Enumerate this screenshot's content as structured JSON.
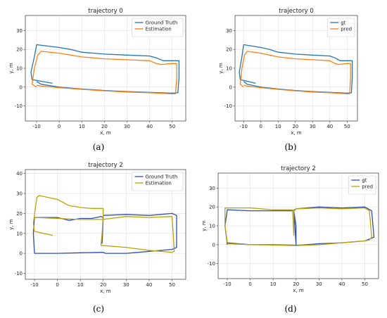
{
  "panel_labels": [
    "(a)",
    "(b)",
    "(c)",
    "(d)"
  ],
  "chart_data": [
    {
      "type": "line",
      "title": "trajectory 0",
      "xlabel": "x, m",
      "ylabel": "y, m",
      "xlim": [
        -15,
        56
      ],
      "ylim": [
        -18,
        38
      ],
      "xticks": [
        -10,
        0,
        10,
        20,
        30,
        40,
        50
      ],
      "yticks": [
        -10,
        0,
        10,
        20,
        30
      ],
      "grid": true,
      "legend": "top-right",
      "colors": {
        "Ground Truth": "#1f77b4",
        "Estimation": "#ff7f0e"
      },
      "series": [
        {
          "name": "Ground Truth",
          "x": [
            -3,
            -12,
            -12.5,
            -11,
            -10,
            0,
            5,
            10,
            20,
            30,
            40,
            43,
            46,
            52,
            53,
            53,
            52.5,
            50,
            40,
            30,
            20,
            10,
            0,
            -8,
            -10
          ],
          "y": [
            2,
            4,
            8,
            16,
            22.5,
            21,
            20,
            18.5,
            17.5,
            17,
            16.5,
            15.5,
            14,
            14,
            14,
            5,
            -3,
            -3.2,
            -2.8,
            -2.4,
            -1.8,
            -1,
            0,
            1.5,
            3
          ]
        },
        {
          "name": "Estimation",
          "x": [
            -10,
            -12,
            -11,
            -9.5,
            -8,
            0,
            10,
            20,
            30,
            40,
            43,
            45,
            50,
            52,
            52,
            51.5,
            50,
            40,
            30,
            20,
            10,
            0,
            -8,
            -10
          ],
          "y": [
            0,
            1.5,
            10,
            17,
            19,
            18,
            16,
            15,
            14.5,
            14,
            12.5,
            12,
            12.5,
            12.5,
            5,
            -3.5,
            -3.6,
            -3,
            -2.6,
            -2,
            -1.2,
            -0.3,
            0.5,
            1
          ]
        }
      ]
    },
    {
      "type": "line",
      "title": "trajectory 0",
      "xlabel": "x, m",
      "ylabel": "y, m",
      "xlim": [
        -15,
        56
      ],
      "ylim": [
        -18,
        38
      ],
      "xticks": [
        -10,
        0,
        10,
        20,
        30,
        40,
        50
      ],
      "yticks": [
        -10,
        0,
        10,
        20,
        30
      ],
      "grid": true,
      "legend": "top-right",
      "colors": {
        "gt": "#1f77b4",
        "pred": "#ff7f0e"
      },
      "series": [
        {
          "name": "gt",
          "x": [
            -3,
            -12,
            -12.5,
            -11,
            -10,
            0,
            5,
            10,
            20,
            30,
            40,
            43,
            46,
            52,
            53,
            53,
            52.5,
            50,
            40,
            30,
            20,
            10,
            0,
            -8,
            -10
          ],
          "y": [
            2,
            4,
            8,
            16,
            22.5,
            21,
            20,
            18.5,
            17.5,
            17,
            16.5,
            15.5,
            14,
            14,
            14,
            5,
            -3,
            -3.2,
            -2.8,
            -2.4,
            -1.8,
            -1,
            0,
            1.5,
            3
          ]
        },
        {
          "name": "pred",
          "x": [
            -10,
            -12,
            -11,
            -9.5,
            -8,
            0,
            10,
            20,
            30,
            40,
            43,
            45,
            50,
            52,
            52,
            51.5,
            50,
            40,
            30,
            20,
            10,
            0,
            -8,
            -10
          ],
          "y": [
            0,
            1.5,
            10,
            17,
            19,
            18,
            16,
            15,
            14.5,
            14,
            12.5,
            12,
            12.5,
            12.5,
            5,
            -3.5,
            -3.6,
            -3,
            -2.6,
            -2,
            -1.2,
            -0.3,
            0.5,
            1
          ]
        }
      ]
    },
    {
      "type": "line",
      "title": "trajectory 2",
      "xlabel": "x, m",
      "ylabel": "y, m",
      "xlim": [
        -14,
        56
      ],
      "ylim": [
        -13,
        42
      ],
      "xticks": [
        -10,
        0,
        10,
        20,
        30,
        40,
        50
      ],
      "yticks": [
        -10,
        0,
        10,
        20,
        30,
        40
      ],
      "grid": true,
      "legend": "top-right",
      "colors": {
        "Ground Truth": "#2c4fb0",
        "Estimation": "#bca300"
      },
      "series": [
        {
          "name": "Ground Truth",
          "x": [
            -10,
            -10.5,
            -10,
            0,
            5,
            10,
            15,
            19,
            20,
            19.5,
            20,
            30,
            40,
            50,
            52,
            52,
            50,
            40,
            30,
            21,
            20,
            19,
            10,
            0,
            -10
          ],
          "y": [
            0,
            10,
            18,
            18,
            16.5,
            17.5,
            17.5,
            18.5,
            18,
            5,
            19,
            19.5,
            19,
            20,
            19,
            3,
            2,
            1,
            0,
            0,
            0.5,
            0.5,
            0.3,
            0,
            0
          ]
        },
        {
          "name": "Estimation",
          "x": [
            -2,
            -10,
            -10.5,
            -9,
            -8,
            0,
            5,
            10,
            15,
            20,
            20,
            19.5,
            19,
            30,
            40,
            50,
            51,
            50.5,
            50,
            40,
            30,
            20,
            10,
            0,
            -10
          ],
          "y": [
            9,
            11,
            15,
            28,
            29,
            27,
            24,
            23,
            22.5,
            22.5,
            19,
            10,
            4,
            3,
            1.5,
            0.5,
            1,
            10,
            18.5,
            18,
            18.5,
            17,
            17,
            17.5,
            18
          ]
        }
      ]
    },
    {
      "type": "line",
      "title": "trajectory 2",
      "xlabel": "x, m",
      "ylabel": "y, m",
      "xlim": [
        -14,
        56
      ],
      "ylim": [
        -18,
        38
      ],
      "xticks": [
        -10,
        0,
        10,
        20,
        30,
        40,
        50
      ],
      "yticks": [
        -10,
        0,
        10,
        20,
        30
      ],
      "grid": true,
      "legend": "top-right",
      "colors": {
        "gt": "#2c4fb0",
        "pred": "#bca300"
      },
      "series": [
        {
          "name": "gt",
          "x": [
            -10,
            -11,
            -10,
            0,
            10,
            19,
            20,
            20,
            19,
            20,
            30,
            40,
            50,
            53,
            54,
            52,
            50,
            40,
            30,
            21,
            10,
            0,
            -10
          ],
          "y": [
            0,
            10,
            18.5,
            18,
            18,
            18,
            10,
            0,
            18,
            19,
            20,
            19.5,
            20,
            18,
            4,
            3,
            2,
            1,
            0.5,
            -0.3,
            0,
            0,
            1
          ]
        },
        {
          "name": "pred",
          "x": [
            -10,
            -11,
            -11,
            0,
            10,
            18.5,
            19,
            19,
            20,
            30,
            40,
            50,
            52,
            53,
            52,
            50,
            40,
            30,
            20,
            10,
            0,
            -10
          ],
          "y": [
            1,
            10,
            19.5,
            19.5,
            18.5,
            18.5,
            5,
            18.5,
            19,
            19.5,
            19,
            19.5,
            18,
            4,
            2.5,
            2,
            1,
            0,
            -0.5,
            -0.2,
            0,
            0.5
          ]
        }
      ]
    }
  ]
}
